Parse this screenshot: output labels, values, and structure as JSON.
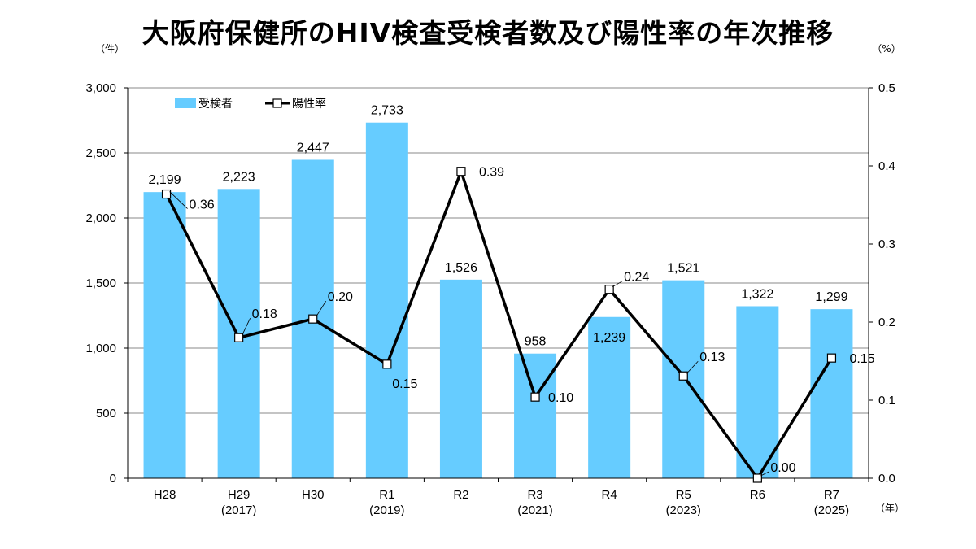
{
  "title": "大阪府保健所のHIV検査受検者数及び陽性率の年次推移",
  "chart_data": {
    "type": "bar",
    "categories": [
      "H28",
      "H29",
      "H30",
      "R1",
      "R2",
      "R3",
      "R4",
      "R5",
      "R6",
      "R7"
    ],
    "category_sublabels": [
      "",
      "(2017)",
      "",
      "(2019)",
      "",
      "(2021)",
      "",
      "(2023)",
      "",
      "(2025)"
    ],
    "series": [
      {
        "name": "受検者",
        "type": "bar",
        "axis": "left",
        "values": [
          2199,
          2223,
          2447,
          2733,
          1526,
          958,
          1239,
          1521,
          1322,
          1299
        ],
        "labels": [
          "2,199",
          "2,223",
          "2,447",
          "2,733",
          "1,526",
          "958",
          "1,239",
          "1,521",
          "1,322",
          "1,299"
        ]
      },
      {
        "name": "陽性率",
        "type": "line",
        "axis": "right",
        "values": [
          0.364,
          0.18,
          0.204,
          0.146,
          0.393,
          0.104,
          0.242,
          0.131,
          0.0,
          0.154
        ],
        "labels": [
          "0.36",
          "0.18",
          "0.20",
          "0.15",
          "0.39",
          "0.10",
          "0.24",
          "0.13",
          "0.00",
          "0.15"
        ]
      }
    ],
    "left_axis": {
      "unit": "（件）",
      "ylim": [
        0,
        3000
      ],
      "ticks": [
        0,
        500,
        1000,
        1500,
        2000,
        2500,
        3000
      ],
      "tick_labels": [
        "0",
        "500",
        "1,000",
        "1,500",
        "2,000",
        "2,500",
        "3,000"
      ]
    },
    "right_axis": {
      "unit": "（%）",
      "ylim": [
        0,
        0.5
      ],
      "ticks": [
        0,
        0.1,
        0.2,
        0.3,
        0.4,
        0.5
      ],
      "tick_labels": [
        "0.0",
        "0.1",
        "0.2",
        "0.3",
        "0.4",
        "0.5"
      ]
    },
    "x_unit": "（年）",
    "legend_position": "top-left",
    "colors": {
      "bar": "#66CCFF",
      "line": "#000000",
      "marker_fill": "#ffffff"
    }
  }
}
